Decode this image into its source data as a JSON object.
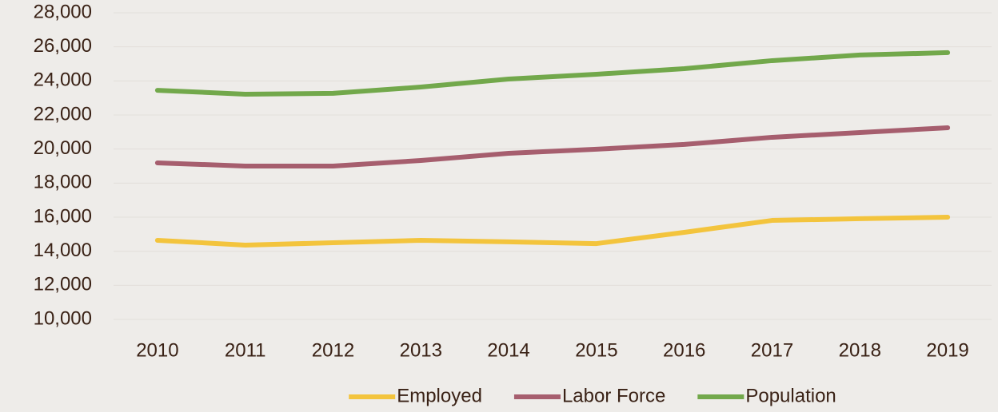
{
  "chart_data": {
    "type": "line",
    "categories": [
      "2010",
      "2011",
      "2012",
      "2013",
      "2014",
      "2015",
      "2016",
      "2017",
      "2018",
      "2019"
    ],
    "series": [
      {
        "name": "Employed",
        "color": "#f3c43d",
        "values": [
          14640,
          14360,
          14500,
          14640,
          14550,
          14450,
          15110,
          15810,
          15910,
          16000
        ]
      },
      {
        "name": "Labor Force",
        "color": "#a65e6e",
        "values": [
          19190,
          19000,
          19000,
          19330,
          19750,
          19990,
          20270,
          20690,
          20970,
          21250
        ]
      },
      {
        "name": "Population",
        "color": "#72a84b",
        "values": [
          23450,
          23220,
          23270,
          23640,
          24110,
          24390,
          24720,
          25190,
          25520,
          25660
        ]
      }
    ],
    "ylim": [
      10000,
      28000
    ],
    "yticks": [
      {
        "value": 10000,
        "label": "10,000"
      },
      {
        "value": 12000,
        "label": "12,000"
      },
      {
        "value": 14000,
        "label": "14,000"
      },
      {
        "value": 16000,
        "label": "16,000"
      },
      {
        "value": 18000,
        "label": "18,000"
      },
      {
        "value": 20000,
        "label": "20,000"
      },
      {
        "value": 22000,
        "label": "22,000"
      },
      {
        "value": 24000,
        "label": "24,000"
      },
      {
        "value": 26000,
        "label": "26,000"
      },
      {
        "value": 28000,
        "label": "28,000"
      }
    ],
    "grid": true,
    "legend": "bottom"
  }
}
